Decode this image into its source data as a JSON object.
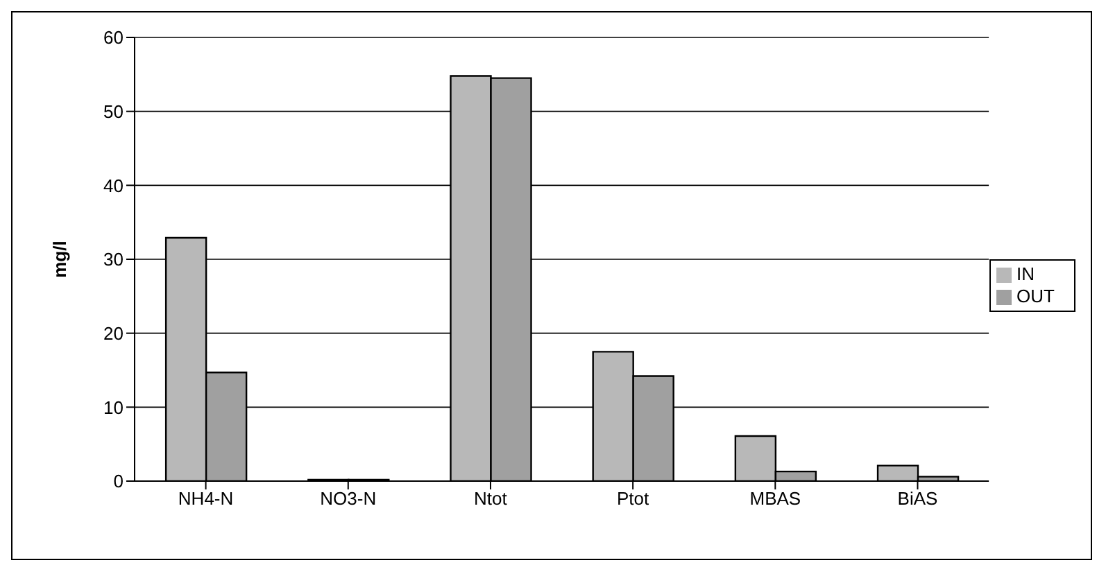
{
  "chart_data": {
    "type": "bar",
    "ylabel": "mg/l",
    "categories": [
      "NH4-N",
      "NO3-N",
      "Ntot",
      "Ptot",
      "MBAS",
      "BiAS"
    ],
    "series": [
      {
        "name": "IN",
        "color": "#b8b8b8",
        "values": [
          32.9,
          0.2,
          54.8,
          17.5,
          6.1,
          2.1
        ]
      },
      {
        "name": "OUT",
        "color": "#a0a0a0",
        "values": [
          14.7,
          0.2,
          54.5,
          14.2,
          1.3,
          0.6
        ]
      }
    ],
    "ylim": [
      0,
      60
    ],
    "yticks": [
      0,
      10,
      20,
      30,
      40,
      50,
      60
    ],
    "grid": "y",
    "legend": "right"
  }
}
